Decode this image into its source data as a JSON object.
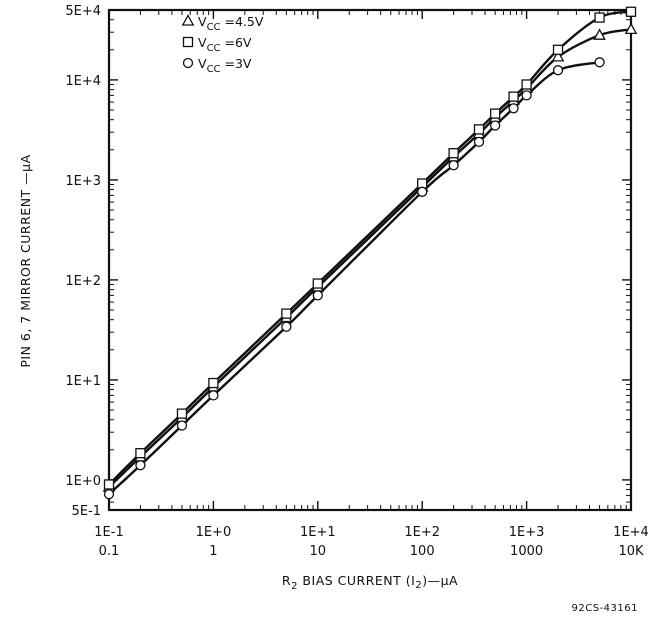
{
  "chart_data": {
    "type": "line",
    "x_scale": "log",
    "y_scale": "log",
    "xlim": [
      0.1,
      10000
    ],
    "ylim": [
      0.5,
      50000
    ],
    "grid": false,
    "legend_placement": "top-left",
    "x_ticks": [
      {
        "value": 0.1,
        "label": "1E-1",
        "sublabel": "0.1"
      },
      {
        "value": 1,
        "label": "1E+0",
        "sublabel": "1"
      },
      {
        "value": 10,
        "label": "1E+1",
        "sublabel": "10"
      },
      {
        "value": 100,
        "label": "1E+2",
        "sublabel": "100"
      },
      {
        "value": 1000,
        "label": "1E+3",
        "sublabel": "1000"
      },
      {
        "value": 10000,
        "label": "1E+4",
        "sublabel": "10K"
      }
    ],
    "y_ticks": [
      {
        "value": 0.5,
        "label": "5E-1"
      },
      {
        "value": 1,
        "label": "1E+0"
      },
      {
        "value": 10,
        "label": "1E+1"
      },
      {
        "value": 100,
        "label": "1E+2"
      },
      {
        "value": 1000,
        "label": "1E+3"
      },
      {
        "value": 10000,
        "label": "1E+4"
      },
      {
        "value": 50000,
        "label": "5E+4"
      }
    ],
    "xlabel_main": "R",
    "xlabel_sub": "2",
    "xlabel_rest": " BIAS CURRENT (I",
    "xlabel_sub2": "2",
    "xlabel_end": ")—µA",
    "ylabel": "PIN 6, 7 MIRROR CURRENT —µA",
    "figure_code": "92CS-43161",
    "legend_v": "V",
    "legend_cc": "CC",
    "series": [
      {
        "name_value": "=4.5V",
        "marker": "triangle",
        "x": [
          0.1,
          0.2,
          0.5,
          1,
          5,
          10,
          100,
          200,
          350,
          500,
          750,
          1000,
          2000,
          5000,
          10000
        ],
        "y": [
          0.85,
          1.7,
          4.2,
          8.5,
          42,
          85,
          850,
          1700,
          2900,
          4200,
          6200,
          8200,
          17000,
          28000,
          32000
        ]
      },
      {
        "name_value": "=6V",
        "marker": "square",
        "x": [
          0.1,
          0.2,
          0.5,
          1,
          5,
          10,
          100,
          200,
          350,
          500,
          750,
          1000,
          2000,
          5000,
          10000
        ],
        "y": [
          0.9,
          1.85,
          4.6,
          9.3,
          46,
          92,
          920,
          1850,
          3200,
          4600,
          6800,
          9000,
          20000,
          42000,
          48000
        ]
      },
      {
        "name_value": "=3V",
        "marker": "circle",
        "x": [
          0.1,
          0.2,
          0.5,
          1,
          5,
          10,
          100,
          200,
          350,
          500,
          750,
          1000,
          2000,
          5000
        ],
        "y": [
          0.72,
          1.4,
          3.5,
          7.0,
          34,
          70,
          760,
          1400,
          2400,
          3500,
          5200,
          7000,
          12500,
          15000
        ]
      }
    ]
  }
}
